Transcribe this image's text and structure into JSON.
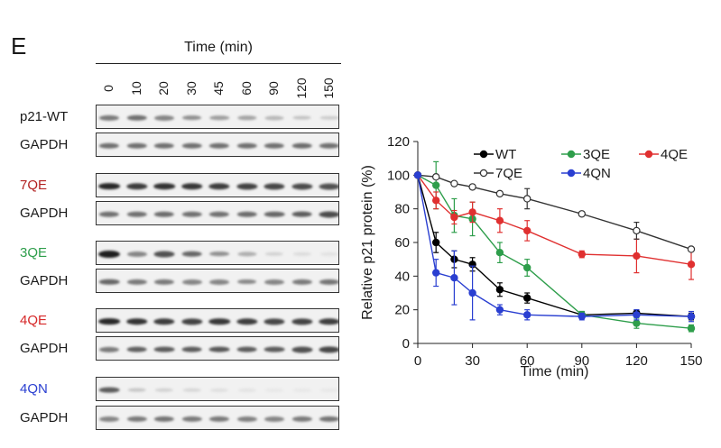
{
  "figure": {
    "panel_letter": "E",
    "time_axis_title": "Time (min)",
    "time_points": [
      "0",
      "10",
      "20",
      "30",
      "45",
      "60",
      "90",
      "120",
      "150"
    ],
    "blots": [
      {
        "label": "p21-WT",
        "label_color": "#1a1a1a",
        "intensities": [
          0.55,
          0.6,
          0.5,
          0.45,
          0.38,
          0.35,
          0.25,
          0.2,
          0.15
        ]
      },
      {
        "label": "GAPDH",
        "label_color": "#1a1a1a",
        "intensities": [
          0.6,
          0.6,
          0.6,
          0.6,
          0.6,
          0.6,
          0.6,
          0.62,
          0.6
        ]
      },
      {
        "label": "7QE",
        "label_color": "#b22222",
        "intensities": [
          0.95,
          0.85,
          0.9,
          0.88,
          0.85,
          0.82,
          0.8,
          0.78,
          0.75
        ]
      },
      {
        "label": "GAPDH",
        "label_color": "#1a1a1a",
        "intensities": [
          0.6,
          0.6,
          0.62,
          0.6,
          0.6,
          0.62,
          0.65,
          0.7,
          0.78
        ]
      },
      {
        "label": "3QE",
        "label_color": "#2e9e4b",
        "intensities": [
          1.0,
          0.5,
          0.75,
          0.65,
          0.45,
          0.3,
          0.12,
          0.08,
          0.05
        ]
      },
      {
        "label": "GAPDH",
        "label_color": "#1a1a1a",
        "intensities": [
          0.65,
          0.55,
          0.55,
          0.5,
          0.5,
          0.48,
          0.5,
          0.55,
          0.58
        ]
      },
      {
        "label": "4QE",
        "label_color": "#d62728",
        "intensities": [
          0.95,
          0.9,
          0.85,
          0.82,
          0.88,
          0.85,
          0.8,
          0.82,
          0.85
        ]
      },
      {
        "label": "GAPDH",
        "label_color": "#1a1a1a",
        "intensities": [
          0.55,
          0.68,
          0.7,
          0.7,
          0.72,
          0.7,
          0.7,
          0.75,
          0.8
        ]
      },
      {
        "label": "4QN",
        "label_color": "#2a3fd1",
        "intensities": [
          0.7,
          0.18,
          0.12,
          0.1,
          0.06,
          0.04,
          0.02,
          0.02,
          0.02
        ]
      },
      {
        "label": "GAPDH",
        "label_color": "#1a1a1a",
        "intensities": [
          0.5,
          0.55,
          0.58,
          0.55,
          0.55,
          0.52,
          0.5,
          0.55,
          0.58
        ]
      }
    ]
  },
  "chart_data": {
    "type": "line",
    "title": "",
    "xlabel": "Time (min)",
    "ylabel": "Relative p21 protein (%)",
    "xlim": [
      0,
      150
    ],
    "ylim": [
      0,
      120
    ],
    "xticks": [
      0,
      30,
      60,
      90,
      120,
      150
    ],
    "yticks": [
      0,
      20,
      40,
      60,
      80,
      100,
      120
    ],
    "grid": false,
    "legend": "top-right",
    "x": [
      0,
      10,
      20,
      30,
      45,
      60,
      90,
      120,
      150
    ],
    "series": [
      {
        "name": "WT",
        "color": "#000000",
        "marker": "filled",
        "values": [
          100,
          60,
          50,
          47,
          32,
          27,
          17,
          18,
          16
        ],
        "errors": [
          0,
          6,
          5,
          4,
          4,
          3,
          2,
          2,
          2
        ]
      },
      {
        "name": "3QE",
        "color": "#2e9e4b",
        "marker": "filled",
        "values": [
          100,
          94,
          76,
          74,
          54,
          45,
          17,
          12,
          9
        ],
        "errors": [
          0,
          14,
          10,
          10,
          6,
          5,
          2,
          3,
          2
        ]
      },
      {
        "name": "4QE",
        "color": "#e03030",
        "marker": "filled",
        "values": [
          100,
          85,
          75,
          78,
          73,
          67,
          53,
          52,
          47
        ],
        "errors": [
          0,
          5,
          4,
          6,
          7,
          6,
          2,
          10,
          9
        ]
      },
      {
        "name": "7QE",
        "color": "#333333",
        "marker": "open",
        "values": [
          100,
          99,
          95,
          93,
          89,
          86,
          77,
          67,
          56
        ],
        "errors": [
          0,
          0,
          0,
          0,
          0,
          6,
          0,
          5,
          0
        ]
      },
      {
        "name": "4QN",
        "color": "#2a3fd1",
        "marker": "filled",
        "values": [
          100,
          42,
          39,
          30,
          20,
          17,
          16,
          17,
          16
        ],
        "errors": [
          0,
          8,
          16,
          16,
          3,
          3,
          2,
          3,
          3
        ]
      }
    ]
  }
}
